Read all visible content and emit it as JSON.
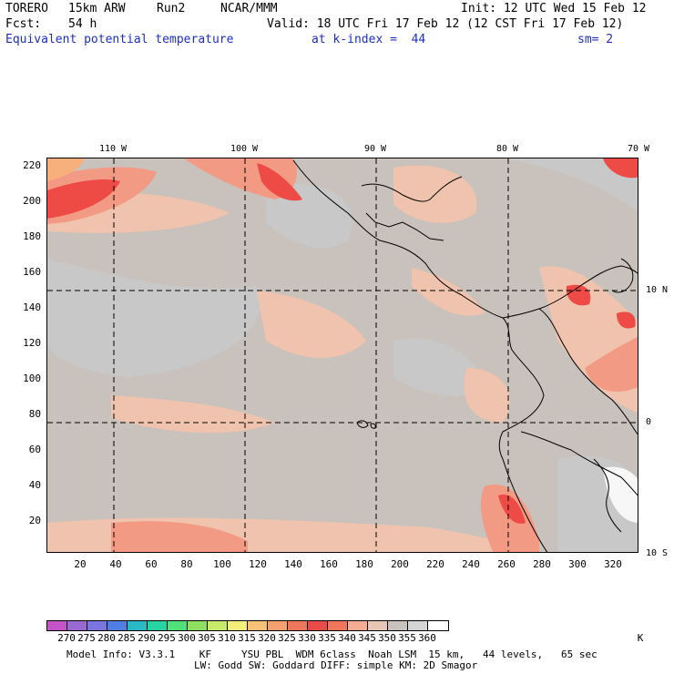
{
  "header": {
    "model": "TORERO",
    "resolution": "15km ARW",
    "run": "Run2",
    "org": "NCAR/MMM",
    "init": "Init: 12 UTC Wed 15 Feb 12",
    "fcst_label": "Fcst:",
    "fcst_value": "54 h",
    "valid": "Valid: 18 UTC Fri 17 Feb 12 (12 CST Fri 17 Feb 12)",
    "field": "Equivalent potential temperature",
    "level": "at k-index =  44",
    "smoothing": "sm= 2"
  },
  "axes": {
    "x_ticks": [
      "20",
      "40",
      "60",
      "80",
      "100",
      "120",
      "140",
      "160",
      "180",
      "200",
      "220",
      "240",
      "260",
      "280",
      "300",
      "320"
    ],
    "y_ticks": [
      "20",
      "40",
      "60",
      "80",
      "100",
      "120",
      "140",
      "160",
      "180",
      "200",
      "220"
    ],
    "lon_labels": [
      "110 W",
      "100 W",
      "90 W",
      "80 W",
      "70 W"
    ],
    "lat_labels": [
      "10 N",
      "0",
      "10 S"
    ]
  },
  "colorbar": {
    "labels": [
      "270",
      "275",
      "280",
      "285",
      "290",
      "295",
      "300",
      "305",
      "310",
      "315",
      "320",
      "325",
      "330",
      "335",
      "340",
      "345",
      "350",
      "355",
      "360"
    ],
    "unit": "K",
    "colors": [
      "#c454c8",
      "#9b6ad1",
      "#7c77e0",
      "#4f7fe3",
      "#29b8c4",
      "#27d3a2",
      "#4fe07a",
      "#8fe05f",
      "#c8ea6a",
      "#f2ee7c",
      "#f7c278",
      "#f4a070",
      "#f0765c",
      "#e94b48",
      "#f0765c",
      "#f4ad92",
      "#e8c6b6",
      "#c9c1bb",
      "#d4d4d4",
      "#ffffff"
    ]
  },
  "map_colors": {
    "background": "#c9c1bb",
    "light_gray": "#c8c8c8",
    "peach": "#efc3ad",
    "salmon": "#f39a84",
    "red": "#ee4a46",
    "orange": "#f7b07c",
    "white": "#f7f7f7"
  },
  "footer": {
    "line1": "Model Info: V3.3.1    KF     YSU PBL  WDM 6class  Noah LSM  15 km,   44 levels,   65 sec",
    "line2": "LW: Godd SW: Goddard DIFF: simple KM: 2D Smagor"
  }
}
